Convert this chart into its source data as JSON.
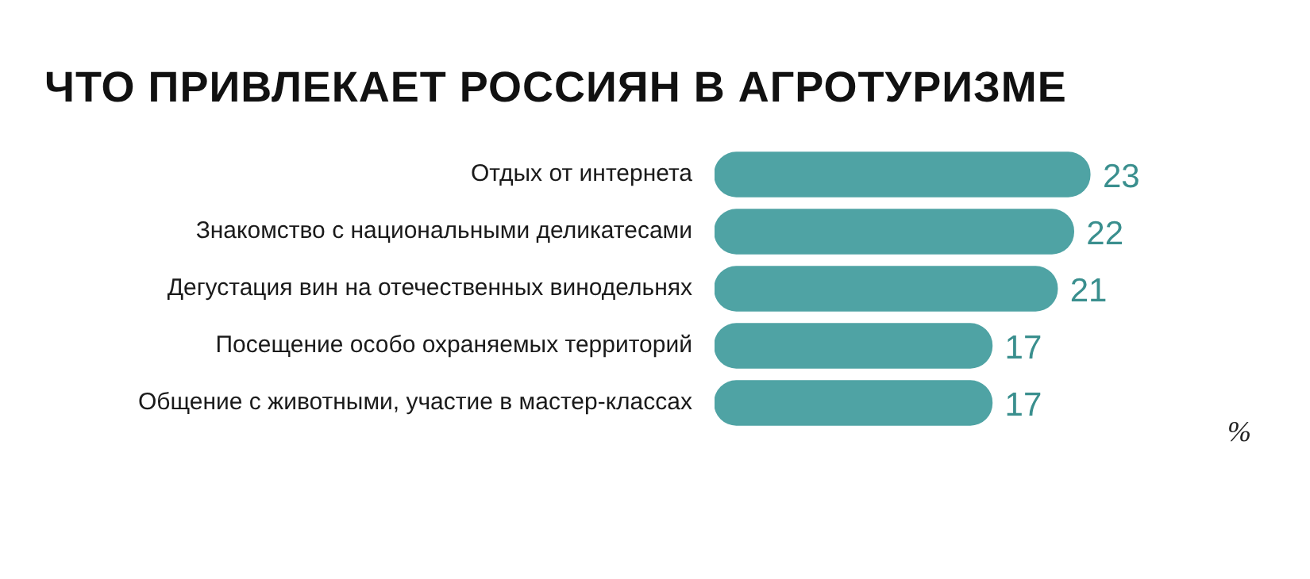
{
  "chart_data": {
    "type": "bar",
    "orientation": "horizontal",
    "title": "ЧТО ПРИВЛЕКАЕТ РОССИЯН В АГРОТУРИЗМЕ",
    "categories": [
      "Отдых от интернета",
      "Знакомство с национальными деликатесами",
      "Дегустация вин на отечественных винодельнях",
      "Посещение особо охраняемых территорий",
      "Общение с животными, участие в мастер-классах"
    ],
    "values": [
      23,
      22,
      21,
      17,
      17
    ],
    "color": "#4fa3a4",
    "data_labels": true,
    "legend": false,
    "annotations": [
      "%"
    ]
  }
}
